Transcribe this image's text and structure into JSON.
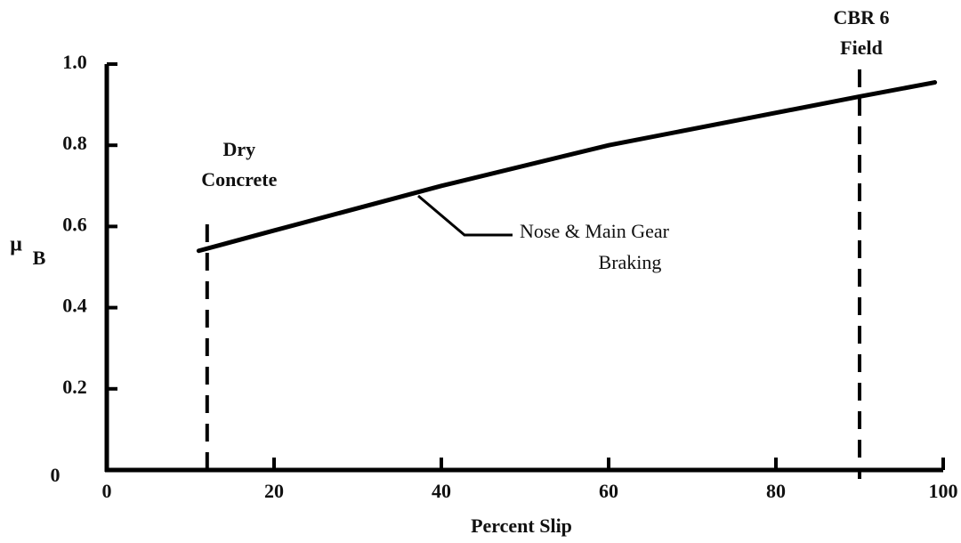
{
  "chart_data": {
    "type": "line",
    "xlabel": "Percent Slip",
    "ylabel": "μ",
    "ylabel_subscript": "B",
    "xlim": [
      0,
      100
    ],
    "ylim": [
      0,
      1
    ],
    "xticks": [
      0,
      20,
      40,
      60,
      80,
      100
    ],
    "yticks": [
      0,
      0.2,
      0.4,
      0.6,
      0.8,
      {
        "value": 1,
        "label": "1.0"
      }
    ],
    "grid": false,
    "x": [
      11,
      20,
      40,
      60,
      80,
      90,
      99
    ],
    "series": [
      {
        "name": "Nose & Main Gear Braking",
        "color": "#000000",
        "values": [
          0.54,
          0.59,
          0.7,
          0.8,
          0.88,
          0.92,
          0.955
        ]
      }
    ],
    "annotation": [
      "Nose & Main Gear",
      "Braking"
    ],
    "reference_lines": [
      {
        "x": 12,
        "label": [
          "Dry",
          "Concrete"
        ]
      },
      {
        "x": 90,
        "label": [
          "CBR 6",
          "Field"
        ]
      }
    ]
  }
}
